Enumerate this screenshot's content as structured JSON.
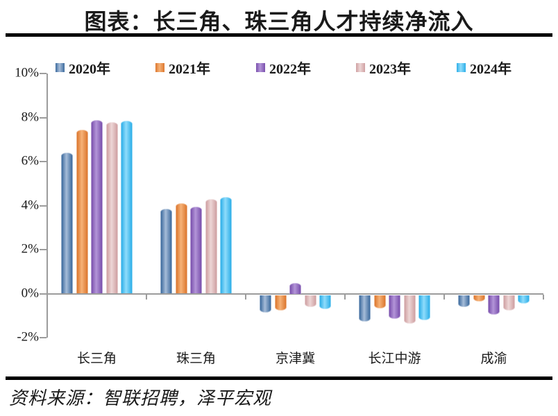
{
  "source_label": "资料来源：智联招聘，泽平宏观",
  "axis_color": "#9c9c9c",
  "rule_color": "#000000",
  "chart_data": {
    "type": "bar",
    "title": "图表：长三角、珠三角人才持续净流入",
    "categories": [
      "长三角",
      "珠三角",
      "京津冀",
      "长江中游",
      "成渝"
    ],
    "series": [
      {
        "name": "2020年",
        "color": "#4F81BD",
        "color_edge": "#3D6B9E",
        "color_light": "#A6BCD8",
        "values": [
          6.4,
          3.85,
          -0.8,
          -1.2,
          -0.55
        ]
      },
      {
        "name": "2021年",
        "color": "#ED7D31",
        "color_edge": "#DC772F",
        "color_light": "#F6B277",
        "values": [
          7.45,
          4.1,
          -0.7,
          -0.6,
          -0.3
        ]
      },
      {
        "name": "2022年",
        "color": "#8657C1",
        "color_edge": "#7A50AD",
        "color_light": "#B395D8",
        "values": [
          7.9,
          3.95,
          0.5,
          -1.1,
          -0.9
        ]
      },
      {
        "name": "2023年",
        "color": "#D9A7A7",
        "color_edge": "#CFA0A2",
        "color_light": "#EDD6D6",
        "values": [
          7.8,
          4.3,
          -0.55,
          -1.3,
          -0.7
        ]
      },
      {
        "name": "2024年",
        "color": "#41BEF1",
        "color_edge": "#2EAFE8",
        "color_light": "#8FDCFB",
        "values": [
          7.85,
          4.4,
          -0.65,
          -1.15,
          -0.4
        ]
      }
    ],
    "xlabel": "",
    "ylabel": "",
    "y_ticks": [
      {
        "label": "10%",
        "value": 10
      },
      {
        "label": "8%",
        "value": 8
      },
      {
        "label": "6%",
        "value": 6
      },
      {
        "label": "4%",
        "value": 4
      },
      {
        "label": "2%",
        "value": 2
      },
      {
        "label": "0%",
        "value": 0
      },
      {
        "label": "-2%",
        "value": -2
      }
    ],
    "ylim": [
      -2,
      10
    ],
    "grid": false,
    "legend_position": "top"
  }
}
